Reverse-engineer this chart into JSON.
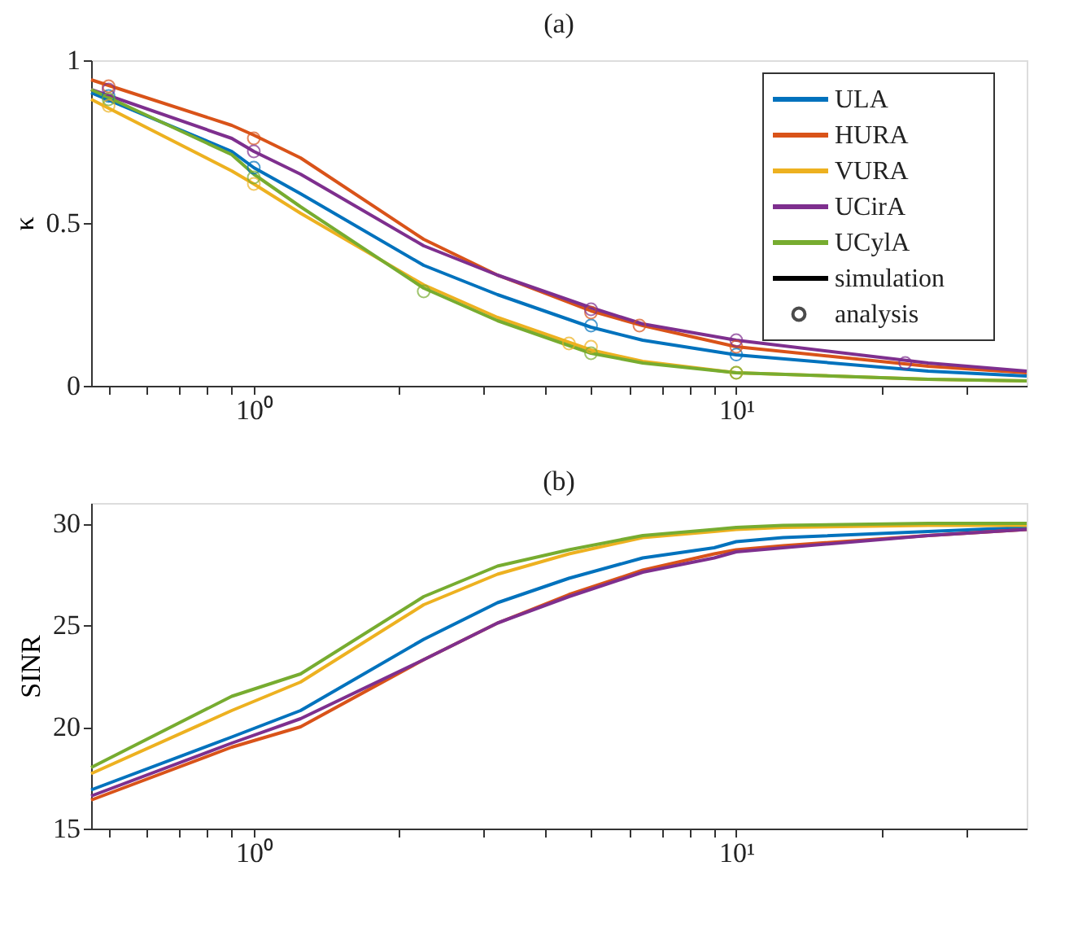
{
  "chart_data": [
    {
      "type": "line",
      "title": "(a)",
      "ylabel": "κ",
      "xlim": [
        0.46,
        40
      ],
      "ylim": [
        0,
        1
      ],
      "log": "x",
      "grid": false,
      "legend": "top right",
      "xticks": [
        {
          "value": 0.5,
          "label": null
        },
        {
          "value": 0.6,
          "label": null
        },
        {
          "value": 0.7,
          "label": null
        },
        {
          "value": 0.8,
          "label": null
        },
        {
          "value": 0.9,
          "label": null
        },
        {
          "value": 1,
          "label": "10⁰"
        },
        {
          "value": 2,
          "label": null
        },
        {
          "value": 3,
          "label": null
        },
        {
          "value": 4,
          "label": null
        },
        {
          "value": 5,
          "label": null
        },
        {
          "value": 6,
          "label": null
        },
        {
          "value": 7,
          "label": null
        },
        {
          "value": 8,
          "label": null
        },
        {
          "value": 9,
          "label": null
        },
        {
          "value": 10,
          "label": "10¹"
        },
        {
          "value": 20,
          "label": null
        },
        {
          "value": 30,
          "label": null
        }
      ],
      "yticks": [
        0,
        0.5,
        1
      ],
      "series": [
        {
          "name": "ULA",
          "type": "line",
          "color": "#0072bd",
          "x": [
            0.46,
            0.9,
            1,
            1.25,
            2.25,
            3.2,
            5,
            6.4,
            10,
            25,
            40
          ],
          "values": [
            0.9,
            0.72,
            0.67,
            0.59,
            0.37,
            0.28,
            0.18,
            0.14,
            0.095,
            0.045,
            0.03
          ]
        },
        {
          "name": "HURA",
          "type": "line",
          "color": "#d95319",
          "x": [
            0.46,
            0.9,
            1,
            1.25,
            2.25,
            3.2,
            5,
            6.4,
            10,
            25,
            40
          ],
          "values": [
            0.94,
            0.8,
            0.77,
            0.7,
            0.45,
            0.34,
            0.23,
            0.185,
            0.12,
            0.06,
            0.04
          ]
        },
        {
          "name": "VURA",
          "type": "line",
          "color": "#edb120",
          "x": [
            0.46,
            0.9,
            1,
            1.25,
            2.25,
            3.2,
            5,
            6.4,
            10,
            25,
            40
          ],
          "values": [
            0.88,
            0.66,
            0.62,
            0.53,
            0.31,
            0.21,
            0.11,
            0.075,
            0.04,
            0.02,
            0.015
          ]
        },
        {
          "name": "UCirA",
          "type": "line",
          "color": "#7e2f8e",
          "x": [
            0.46,
            0.9,
            1,
            1.25,
            2.25,
            3.2,
            5,
            6.4,
            10,
            25,
            40
          ],
          "values": [
            0.91,
            0.76,
            0.72,
            0.65,
            0.43,
            0.34,
            0.24,
            0.19,
            0.14,
            0.07,
            0.045
          ]
        },
        {
          "name": "UCylA",
          "type": "line",
          "color": "#77ac30",
          "x": [
            0.46,
            0.9,
            1,
            1.25,
            2.25,
            3.2,
            5,
            6.4,
            10,
            25,
            40
          ],
          "values": [
            0.91,
            0.71,
            0.65,
            0.55,
            0.3,
            0.2,
            0.1,
            0.07,
            0.04,
            0.02,
            0.015
          ]
        },
        {
          "name": "simulation",
          "color": "#000000"
        },
        {
          "name": "analysis",
          "type": "scatter",
          "marker": "circle",
          "color": "#000000"
        },
        {
          "type": "scatter",
          "marker": "circle",
          "color": "#0072bd",
          "x": [
            0.5,
            1,
            5,
            10
          ],
          "values": [
            0.89,
            0.67,
            0.185,
            0.096
          ]
        },
        {
          "type": "scatter",
          "marker": "circle",
          "color": "#d95319",
          "x": [
            0.5,
            1,
            5,
            6.3,
            10
          ],
          "values": [
            0.92,
            0.76,
            0.225,
            0.185,
            0.12
          ]
        },
        {
          "type": "scatter",
          "marker": "circle",
          "color": "#edb120",
          "x": [
            0.5,
            1,
            4.5,
            5,
            10
          ],
          "values": [
            0.86,
            0.62,
            0.13,
            0.12,
            0.04
          ]
        },
        {
          "type": "scatter",
          "marker": "circle",
          "color": "#7e2f8e",
          "x": [
            0.5,
            1,
            5,
            10,
            22.4
          ],
          "values": [
            0.91,
            0.72,
            0.235,
            0.14,
            0.07
          ]
        },
        {
          "type": "scatter",
          "marker": "circle",
          "color": "#77ac30",
          "x": [
            0.5,
            1,
            2.25,
            5,
            10
          ],
          "values": [
            0.88,
            0.64,
            0.29,
            0.1,
            0.04
          ]
        }
      ]
    },
    {
      "type": "line",
      "title": "(b)",
      "ylabel": "SINR",
      "xlim": [
        0.46,
        40
      ],
      "ylim": [
        15,
        31
      ],
      "log": "x",
      "grid": false,
      "xticks": [
        {
          "value": 0.5,
          "label": null
        },
        {
          "value": 0.6,
          "label": null
        },
        {
          "value": 0.7,
          "label": null
        },
        {
          "value": 0.8,
          "label": null
        },
        {
          "value": 0.9,
          "label": null
        },
        {
          "value": 1,
          "label": "10⁰"
        },
        {
          "value": 2,
          "label": null
        },
        {
          "value": 3,
          "label": null
        },
        {
          "value": 4,
          "label": null
        },
        {
          "value": 5,
          "label": null
        },
        {
          "value": 6,
          "label": null
        },
        {
          "value": 7,
          "label": null
        },
        {
          "value": 8,
          "label": null
        },
        {
          "value": 9,
          "label": null
        },
        {
          "value": 10,
          "label": "10¹"
        },
        {
          "value": 20,
          "label": null
        },
        {
          "value": 30,
          "label": null
        }
      ],
      "yticks": [
        15,
        20,
        25,
        30
      ],
      "series": [
        {
          "type": "line",
          "color": "#0072bd",
          "x": [
            0.46,
            0.9,
            1.25,
            2.25,
            3.2,
            4.5,
            6.4,
            9,
            10,
            12.5,
            25,
            40
          ],
          "values": [
            16.9,
            19.5,
            20.8,
            24.3,
            26.1,
            27.3,
            28.3,
            28.8,
            29.1,
            29.3,
            29.6,
            29.8
          ]
        },
        {
          "type": "line",
          "color": "#d95319",
          "x": [
            0.46,
            0.9,
            1.25,
            2.25,
            3.2,
            4.5,
            6.4,
            9,
            10,
            12.5,
            25,
            40
          ],
          "values": [
            16.4,
            19.0,
            20.0,
            23.3,
            25.1,
            26.5,
            27.7,
            28.5,
            28.7,
            28.9,
            29.4,
            29.7
          ]
        },
        {
          "type": "line",
          "color": "#edb120",
          "x": [
            0.46,
            0.9,
            1.25,
            2.25,
            3.2,
            4.5,
            6.4,
            9,
            10,
            12.5,
            25,
            40
          ],
          "values": [
            17.7,
            20.8,
            22.2,
            26.0,
            27.5,
            28.5,
            29.3,
            29.6,
            29.7,
            29.8,
            29.9,
            29.9
          ]
        },
        {
          "type": "line",
          "color": "#7e2f8e",
          "x": [
            0.46,
            0.9,
            1.25,
            2.25,
            3.2,
            4.5,
            6.4,
            9,
            10,
            12.5,
            25,
            40
          ],
          "values": [
            16.6,
            19.2,
            20.4,
            23.3,
            25.1,
            26.4,
            27.6,
            28.3,
            28.6,
            28.8,
            29.4,
            29.7
          ]
        },
        {
          "type": "line",
          "color": "#77ac30",
          "x": [
            0.46,
            0.9,
            1.25,
            2.25,
            3.2,
            4.5,
            6.4,
            9,
            10,
            12.5,
            25,
            40
          ],
          "values": [
            18.0,
            21.5,
            22.6,
            26.4,
            27.9,
            28.7,
            29.4,
            29.7,
            29.8,
            29.9,
            30.0,
            30.0
          ]
        }
      ]
    }
  ]
}
